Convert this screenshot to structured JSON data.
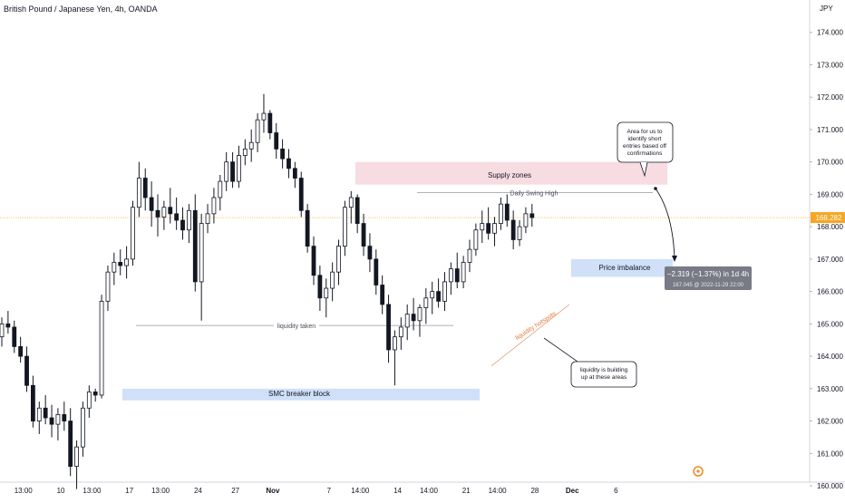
{
  "title": "British Pound / Japanese Yen, 4h, OANDA",
  "currency": "JPY",
  "chart_data": {
    "type": "candlestick",
    "symbol": "GBPJPY",
    "interval": "4h",
    "ylim": [
      159.85,
      175.0
    ],
    "y_ticks": [
      160,
      161,
      162,
      163,
      164,
      165,
      166,
      167,
      168,
      169,
      170,
      171,
      172,
      173,
      174
    ],
    "x_ticks": [
      {
        "label": "13:00",
        "i": 2
      },
      {
        "label": "10",
        "i": 8
      },
      {
        "label": "13:00",
        "i": 13
      },
      {
        "label": "17",
        "i": 19
      },
      {
        "label": "13:00",
        "i": 24
      },
      {
        "label": "24",
        "i": 30
      },
      {
        "label": "27",
        "i": 36
      },
      {
        "label": "Nov",
        "i": 42
      },
      {
        "label": "7",
        "i": 51
      },
      {
        "label": "14:00",
        "i": 56
      },
      {
        "label": "14",
        "i": 62
      },
      {
        "label": "14:00",
        "i": 67
      },
      {
        "label": "21",
        "i": 73
      },
      {
        "label": "14:00",
        "i": 78
      },
      {
        "label": "28",
        "i": 84
      },
      {
        "label": "Dec",
        "i": 90
      },
      {
        "label": "6",
        "i": 97
      }
    ],
    "last_price": "168.282",
    "candles": [
      [
        164.6,
        165.2,
        164.3,
        165.0
      ],
      [
        165.0,
        165.4,
        164.7,
        164.9
      ],
      [
        164.9,
        165.1,
        164.1,
        164.3
      ],
      [
        164.3,
        164.6,
        163.8,
        164.0
      ],
      [
        164.0,
        164.3,
        162.9,
        163.1
      ],
      [
        163.1,
        163.4,
        161.8,
        162.0
      ],
      [
        162.0,
        162.6,
        161.6,
        162.4
      ],
      [
        162.4,
        162.8,
        161.9,
        162.1
      ],
      [
        162.1,
        162.5,
        161.5,
        161.9
      ],
      [
        161.9,
        162.4,
        161.4,
        162.2
      ],
      [
        162.2,
        162.6,
        161.7,
        162.0
      ],
      [
        162.0,
        162.4,
        160.3,
        160.6
      ],
      [
        160.6,
        161.4,
        159.9,
        161.2
      ],
      [
        161.2,
        162.6,
        160.9,
        162.4
      ],
      [
        162.4,
        163.1,
        162.1,
        162.9
      ],
      [
        162.9,
        163.0,
        162.6,
        162.8
      ],
      [
        162.8,
        165.9,
        162.7,
        165.7
      ],
      [
        165.7,
        166.8,
        165.4,
        166.6
      ],
      [
        166.6,
        167.2,
        166.2,
        166.9
      ],
      [
        166.9,
        167.3,
        166.5,
        166.8
      ],
      [
        166.8,
        167.4,
        166.4,
        167.0
      ],
      [
        167.0,
        168.8,
        166.8,
        168.6
      ],
      [
        168.6,
        170.0,
        168.3,
        169.5
      ],
      [
        169.5,
        169.8,
        168.5,
        168.9
      ],
      [
        168.9,
        169.4,
        168.0,
        168.5
      ],
      [
        168.5,
        169.0,
        167.7,
        168.3
      ],
      [
        168.3,
        168.8,
        167.9,
        168.6
      ],
      [
        168.6,
        169.2,
        168.1,
        168.4
      ],
      [
        168.4,
        168.9,
        167.9,
        168.2
      ],
      [
        168.2,
        168.6,
        167.6,
        167.9
      ],
      [
        167.9,
        168.7,
        167.5,
        168.5
      ],
      [
        168.5,
        169.0,
        166.0,
        166.3
      ],
      [
        166.3,
        168.4,
        165.1,
        168.1
      ],
      [
        168.1,
        168.7,
        167.8,
        168.4
      ],
      [
        168.4,
        169.2,
        168.1,
        168.9
      ],
      [
        168.9,
        169.6,
        168.5,
        169.4
      ],
      [
        169.4,
        170.3,
        169.1,
        170.0
      ],
      [
        170.0,
        170.3,
        169.2,
        169.4
      ],
      [
        169.4,
        170.5,
        169.2,
        170.2
      ],
      [
        170.2,
        170.7,
        169.9,
        170.4
      ],
      [
        170.4,
        171.0,
        170.0,
        170.6
      ],
      [
        170.6,
        171.5,
        170.3,
        171.3
      ],
      [
        171.3,
        172.1,
        170.9,
        171.5
      ],
      [
        171.5,
        171.6,
        170.7,
        170.9
      ],
      [
        170.9,
        171.2,
        170.1,
        170.4
      ],
      [
        170.4,
        170.7,
        169.8,
        170.1
      ],
      [
        170.1,
        170.4,
        169.5,
        169.8
      ],
      [
        169.8,
        170.0,
        169.2,
        169.5
      ],
      [
        169.5,
        169.7,
        168.3,
        168.5
      ],
      [
        168.5,
        168.7,
        167.2,
        167.4
      ],
      [
        167.4,
        167.7,
        166.2,
        166.5
      ],
      [
        166.5,
        166.8,
        165.4,
        165.8
      ],
      [
        165.8,
        166.4,
        165.2,
        166.1
      ],
      [
        166.1,
        166.9,
        165.7,
        166.6
      ],
      [
        166.6,
        167.6,
        166.2,
        167.4
      ],
      [
        167.4,
        168.8,
        167.1,
        168.6
      ],
      [
        168.6,
        169.1,
        168.1,
        168.9
      ],
      [
        168.9,
        169.0,
        167.8,
        168.1
      ],
      [
        168.1,
        168.4,
        167.1,
        167.4
      ],
      [
        167.4,
        167.8,
        166.6,
        167.0
      ],
      [
        167.0,
        167.3,
        165.9,
        166.2
      ],
      [
        166.2,
        166.5,
        165.3,
        165.6
      ],
      [
        165.6,
        165.9,
        163.8,
        164.2
      ],
      [
        164.2,
        164.8,
        163.1,
        164.6
      ],
      [
        164.6,
        165.2,
        164.2,
        164.9
      ],
      [
        164.9,
        165.6,
        164.5,
        165.3
      ],
      [
        165.3,
        165.8,
        164.8,
        165.1
      ],
      [
        165.1,
        165.6,
        164.6,
        165.5
      ],
      [
        165.5,
        166.1,
        165.0,
        165.8
      ],
      [
        165.8,
        166.3,
        165.3,
        166.0
      ],
      [
        166.0,
        166.4,
        165.5,
        165.7
      ],
      [
        165.7,
        166.6,
        165.4,
        166.3
      ],
      [
        166.3,
        166.9,
        165.9,
        166.7
      ],
      [
        166.7,
        167.2,
        166.1,
        166.3
      ],
      [
        166.3,
        167.1,
        166.1,
        166.9
      ],
      [
        166.9,
        167.6,
        166.6,
        167.3
      ],
      [
        167.3,
        168.1,
        167.1,
        167.9
      ],
      [
        167.9,
        168.5,
        167.5,
        168.1
      ],
      [
        168.1,
        168.6,
        167.6,
        167.8
      ],
      [
        167.8,
        168.3,
        167.4,
        168.1
      ],
      [
        168.1,
        168.9,
        167.9,
        168.7
      ],
      [
        168.7,
        169.0,
        168.0,
        168.2
      ],
      [
        168.2,
        168.5,
        167.3,
        167.6
      ],
      [
        167.6,
        168.2,
        167.4,
        168.0
      ],
      [
        168.0,
        168.6,
        167.8,
        168.4
      ],
      [
        168.4,
        168.7,
        168.0,
        168.282
      ]
    ],
    "annotations": {
      "supply": "Supply zones",
      "swing_high": "Daily Swing High",
      "imbalance": "Price imbalance",
      "liquidity_taken": "liquidity taken",
      "breaker": "SMC breaker block",
      "hotspots": "liquidity hotspots",
      "callout_short": "Area for us to identify short entries based off confirmations",
      "callout_building": "liquidity is building up at these areas",
      "measure_main": "−2.319 (−1.37%) in 1d 4h",
      "measure_sub": "167.045 @ 2022-11-29 22:00"
    }
  }
}
